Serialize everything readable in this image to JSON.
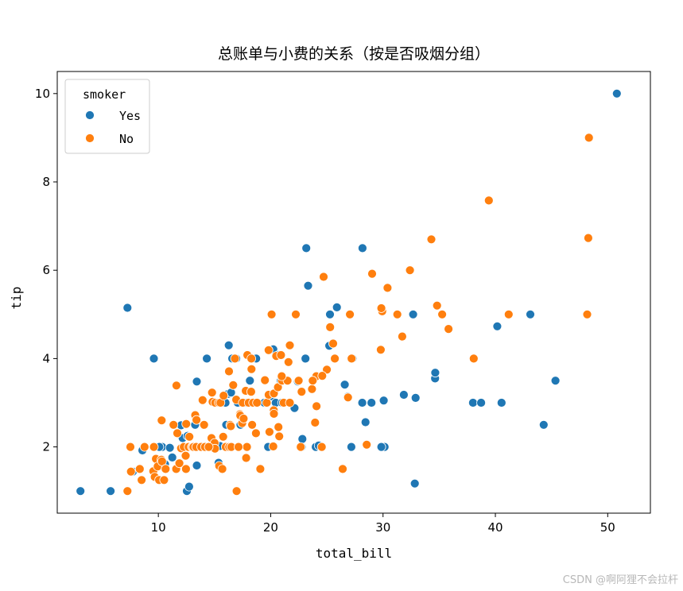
{
  "chart_data": {
    "type": "scatter",
    "title": "总账单与小费的关系（按是否吸烟分组）",
    "xlabel": "total_bill",
    "ylabel": "tip",
    "xlim": [
      1.0,
      53.8
    ],
    "ylim": [
      0.5,
      10.5
    ],
    "xticks": [
      10,
      20,
      30,
      40,
      50
    ],
    "yticks": [
      2,
      4,
      6,
      8,
      10
    ],
    "grid": false,
    "legend": {
      "title": "smoker",
      "placement": "top-left"
    },
    "series": [
      {
        "name": "Yes",
        "color": "#1f77b4",
        "points": [
          [
            3.07,
            1.0
          ],
          [
            5.75,
            1.0
          ],
          [
            7.25,
            5.15
          ],
          [
            7.74,
            1.44
          ],
          [
            8.58,
            1.92
          ],
          [
            9.6,
            4.0
          ],
          [
            10.07,
            2.0
          ],
          [
            10.34,
            2.0
          ],
          [
            10.59,
            1.61
          ],
          [
            11.02,
            1.98
          ],
          [
            11.24,
            1.76
          ],
          [
            11.38,
            2.5
          ],
          [
            11.61,
            1.5
          ],
          [
            12.03,
            2.49
          ],
          [
            12.16,
            2.2
          ],
          [
            12.54,
            1.0
          ],
          [
            12.74,
            1.1
          ],
          [
            12.9,
            2.0
          ],
          [
            12.6,
            2.25
          ],
          [
            13.0,
            2.0
          ],
          [
            13.42,
            3.48
          ],
          [
            13.42,
            1.58
          ],
          [
            13.81,
            2.0
          ],
          [
            14.31,
            4.0
          ],
          [
            14.0,
            2.0
          ],
          [
            15.36,
            1.64
          ],
          [
            15.69,
            1.5
          ],
          [
            15.69,
            3.0
          ],
          [
            15.98,
            3.0
          ],
          [
            16.04,
            2.5
          ],
          [
            16.27,
            4.3
          ],
          [
            16.58,
            4.0
          ],
          [
            16.93,
            4.0
          ],
          [
            16.21,
            3.2
          ],
          [
            17.07,
            3.0
          ],
          [
            17.31,
            2.5
          ],
          [
            17.81,
            3.0
          ],
          [
            18.15,
            3.5
          ],
          [
            18.64,
            4.0
          ],
          [
            19.77,
            2.0
          ],
          [
            20.08,
            3.15
          ],
          [
            20.23,
            4.21
          ],
          [
            20.9,
            3.5
          ],
          [
            20.45,
            3.0
          ],
          [
            20.69,
            4.08
          ],
          [
            21.01,
            3.0
          ],
          [
            22.12,
            2.88
          ],
          [
            22.42,
            3.48
          ],
          [
            22.76,
            2.0
          ],
          [
            23.1,
            4.0
          ],
          [
            23.33,
            5.65
          ],
          [
            23.17,
            6.5
          ],
          [
            24.01,
            2.0
          ],
          [
            24.27,
            2.03
          ],
          [
            25.21,
            4.29
          ],
          [
            25.28,
            5.0
          ],
          [
            25.89,
            5.16
          ],
          [
            26.59,
            3.41
          ],
          [
            26.86,
            3.14
          ],
          [
            27.18,
            2.0
          ],
          [
            27.28,
            4.0
          ],
          [
            28.17,
            6.5
          ],
          [
            28.15,
            3.0
          ],
          [
            28.44,
            2.56
          ],
          [
            28.97,
            3.0
          ],
          [
            30.06,
            3.05
          ],
          [
            30.14,
            2.0
          ],
          [
            29.85,
            2.0
          ],
          [
            31.85,
            3.18
          ],
          [
            32.68,
            5.0
          ],
          [
            32.83,
            1.17
          ],
          [
            32.9,
            3.11
          ],
          [
            34.63,
            3.55
          ],
          [
            34.65,
            3.68
          ],
          [
            38.01,
            3.0
          ],
          [
            38.73,
            3.0
          ],
          [
            40.17,
            4.73
          ],
          [
            40.55,
            3.0
          ],
          [
            43.11,
            5.0
          ],
          [
            44.3,
            2.5
          ],
          [
            45.35,
            3.5
          ],
          [
            50.81,
            10.0
          ],
          [
            10.09,
            2.0
          ],
          [
            13.27,
            2.5
          ],
          [
            16.47,
            3.23
          ],
          [
            18.71,
            4.0
          ],
          [
            19.44,
            3.0
          ],
          [
            15.48,
            2.02
          ],
          [
            17.46,
            2.54
          ],
          [
            22.82,
            2.18
          ]
        ]
      },
      {
        "name": "No",
        "color": "#ff7f0e",
        "points": [
          [
            7.25,
            1.0
          ],
          [
            7.51,
            2.0
          ],
          [
            7.56,
            1.44
          ],
          [
            8.35,
            1.5
          ],
          [
            8.51,
            1.25
          ],
          [
            8.77,
            2.0
          ],
          [
            9.55,
            1.45
          ],
          [
            9.68,
            1.32
          ],
          [
            9.78,
            1.73
          ],
          [
            9.94,
            1.56
          ],
          [
            10.07,
            1.25
          ],
          [
            10.27,
            1.71
          ],
          [
            10.29,
            2.6
          ],
          [
            10.33,
            1.67
          ],
          [
            10.51,
            1.25
          ],
          [
            10.63,
            1.5
          ],
          [
            10.65,
            1.5
          ],
          [
            11.35,
            2.5
          ],
          [
            11.59,
            1.5
          ],
          [
            11.69,
            2.31
          ],
          [
            11.87,
            1.63
          ],
          [
            12.02,
            1.97
          ],
          [
            12.26,
            2.0
          ],
          [
            12.43,
            1.8
          ],
          [
            12.46,
            1.5
          ],
          [
            12.69,
            2.0
          ],
          [
            12.76,
            2.23
          ],
          [
            13.0,
            2.0
          ],
          [
            13.03,
            2.0
          ],
          [
            13.13,
            2.0
          ],
          [
            13.28,
            2.72
          ],
          [
            13.37,
            2.0
          ],
          [
            13.39,
            2.61
          ],
          [
            13.81,
            2.0
          ],
          [
            13.94,
            3.06
          ],
          [
            14.07,
            2.5
          ],
          [
            14.15,
            2.0
          ],
          [
            14.52,
            2.0
          ],
          [
            14.73,
            2.2
          ],
          [
            14.78,
            3.23
          ],
          [
            14.83,
            3.02
          ],
          [
            15.01,
            2.09
          ],
          [
            15.04,
            1.96
          ],
          [
            15.06,
            3.0
          ],
          [
            15.38,
            3.0
          ],
          [
            15.42,
            1.57
          ],
          [
            15.53,
            3.0
          ],
          [
            15.69,
            1.5
          ],
          [
            15.77,
            2.23
          ],
          [
            15.81,
            3.16
          ],
          [
            16.0,
            2.0
          ],
          [
            16.29,
            3.71
          ],
          [
            16.31,
            2.0
          ],
          [
            16.4,
            2.5
          ],
          [
            16.45,
            2.47
          ],
          [
            16.49,
            2.0
          ],
          [
            16.66,
            3.4
          ],
          [
            16.82,
            4.0
          ],
          [
            16.93,
            3.07
          ],
          [
            16.97,
            1.0
          ],
          [
            17.26,
            2.74
          ],
          [
            17.29,
            2.71
          ],
          [
            17.46,
            2.54
          ],
          [
            17.51,
            3.0
          ],
          [
            17.59,
            2.64
          ],
          [
            17.78,
            3.27
          ],
          [
            17.82,
            1.75
          ],
          [
            17.89,
            2.0
          ],
          [
            17.92,
            4.08
          ],
          [
            18.04,
            3.0
          ],
          [
            18.24,
            3.76
          ],
          [
            18.26,
            3.25
          ],
          [
            18.28,
            4.0
          ],
          [
            18.29,
            3.76
          ],
          [
            18.35,
            2.5
          ],
          [
            18.43,
            3.0
          ],
          [
            18.69,
            2.31
          ],
          [
            18.78,
            3.0
          ],
          [
            19.08,
            1.5
          ],
          [
            19.49,
            3.51
          ],
          [
            19.65,
            3.0
          ],
          [
            19.81,
            4.19
          ],
          [
            19.82,
            3.18
          ],
          [
            20.23,
            2.01
          ],
          [
            20.27,
            2.83
          ],
          [
            20.29,
            2.75
          ],
          [
            20.29,
            3.21
          ],
          [
            20.49,
            4.06
          ],
          [
            20.65,
            3.35
          ],
          [
            20.69,
            2.45
          ],
          [
            20.76,
            2.24
          ],
          [
            20.92,
            4.08
          ],
          [
            21.01,
            3.5
          ],
          [
            21.16,
            3.0
          ],
          [
            21.5,
            3.5
          ],
          [
            21.58,
            3.92
          ],
          [
            21.7,
            4.3
          ],
          [
            22.23,
            5.0
          ],
          [
            22.49,
            3.5
          ],
          [
            22.67,
            2.0
          ],
          [
            22.75,
            3.25
          ],
          [
            23.68,
            3.31
          ],
          [
            23.95,
            2.55
          ],
          [
            24.06,
            3.6
          ],
          [
            24.08,
            2.92
          ],
          [
            24.55,
            2.0
          ],
          [
            24.71,
            5.85
          ],
          [
            25.0,
            3.75
          ],
          [
            25.29,
            4.71
          ],
          [
            25.56,
            4.34
          ],
          [
            25.71,
            4.0
          ],
          [
            26.41,
            1.5
          ],
          [
            26.88,
            3.12
          ],
          [
            27.05,
            5.0
          ],
          [
            27.2,
            4.0
          ],
          [
            28.55,
            2.05
          ],
          [
            29.03,
            5.92
          ],
          [
            29.8,
            4.2
          ],
          [
            29.93,
            5.07
          ],
          [
            30.4,
            5.6
          ],
          [
            31.27,
            5.0
          ],
          [
            31.71,
            4.5
          ],
          [
            32.4,
            6.0
          ],
          [
            34.3,
            6.7
          ],
          [
            34.81,
            5.2
          ],
          [
            35.26,
            5.0
          ],
          [
            35.83,
            4.67
          ],
          [
            38.07,
            4.0
          ],
          [
            39.42,
            7.58
          ],
          [
            41.19,
            5.0
          ],
          [
            48.17,
            5.0
          ],
          [
            48.27,
            6.73
          ],
          [
            48.33,
            9.0
          ],
          [
            11.61,
            3.39
          ],
          [
            17.14,
            2.0
          ],
          [
            12.48,
            2.52
          ],
          [
            9.6,
            2.0
          ],
          [
            19.89,
            2.34
          ],
          [
            20.08,
            5.0
          ],
          [
            24.59,
            3.61
          ],
          [
            23.74,
            3.5
          ],
          [
            29.85,
            5.14
          ],
          [
            21.7,
            3.0
          ],
          [
            20.98,
            3.6
          ],
          [
            14.48,
            2.0
          ]
        ]
      }
    ]
  },
  "watermark": "CSDN @啊阿狸不会拉杆"
}
